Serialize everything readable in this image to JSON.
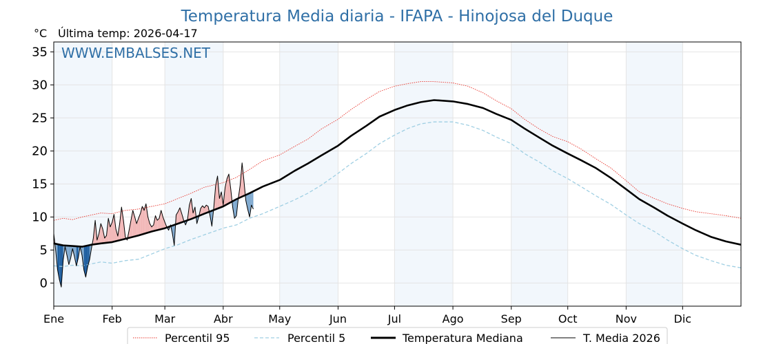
{
  "chart_data": {
    "type": "line",
    "title": "Temperatura Media diaria - IFAPA - Hinojosa del Duque",
    "unit_label": "°C",
    "last_temp_label": "Última temp: 2026-04-17",
    "watermark": "WWW.EMBALSES.NET",
    "ylim": [
      -3.5,
      36.5
    ],
    "yticks": [
      0,
      5,
      10,
      15,
      20,
      25,
      30,
      35
    ],
    "xlim": [
      0,
      365
    ],
    "months": [
      {
        "label": "Ene",
        "day": 0
      },
      {
        "label": "Feb",
        "day": 31
      },
      {
        "label": "Mar",
        "day": 59
      },
      {
        "label": "Abr",
        "day": 90
      },
      {
        "label": "May",
        "day": 120
      },
      {
        "label": "Jun",
        "day": 151
      },
      {
        "label": "Jul",
        "day": 181
      },
      {
        "label": "Ago",
        "day": 212
      },
      {
        "label": "Sep",
        "day": 243
      },
      {
        "label": "Oct",
        "day": 273
      },
      {
        "label": "Nov",
        "day": 304
      },
      {
        "label": "Dic",
        "day": 334
      }
    ],
    "shaded_months": [
      [
        0,
        31
      ],
      [
        59,
        90
      ],
      [
        120,
        151
      ],
      [
        181,
        212
      ],
      [
        243,
        273
      ],
      [
        304,
        334
      ]
    ],
    "grid": true,
    "legend_position": "bottom-center",
    "series": [
      {
        "name": "Percentil 95",
        "color": "#e8332a",
        "style": "dotted",
        "x": [
          0,
          5,
          10,
          15,
          20,
          25,
          31,
          38,
          45,
          52,
          59,
          66,
          73,
          80,
          90,
          97,
          104,
          111,
          120,
          128,
          135,
          142,
          151,
          158,
          166,
          173,
          181,
          188,
          195,
          202,
          212,
          220,
          228,
          235,
          243,
          250,
          258,
          265,
          273,
          280,
          288,
          296,
          304,
          311,
          319,
          326,
          334,
          341,
          349,
          357,
          365
        ],
        "values": [
          9.5,
          9.8,
          9.6,
          10.0,
          10.3,
          10.6,
          10.5,
          11.0,
          11.2,
          11.6,
          12.0,
          12.8,
          13.6,
          14.5,
          15.2,
          16.0,
          17.2,
          18.5,
          19.4,
          20.7,
          21.8,
          23.3,
          24.8,
          26.3,
          27.8,
          29.0,
          29.8,
          30.2,
          30.5,
          30.5,
          30.3,
          29.8,
          28.8,
          27.6,
          26.4,
          24.8,
          23.3,
          22.2,
          21.4,
          20.3,
          18.8,
          17.4,
          15.5,
          13.8,
          12.8,
          12.0,
          11.3,
          10.8,
          10.5,
          10.2,
          9.8
        ]
      },
      {
        "name": "Percentil 5",
        "color": "#9fcfe3",
        "style": "dashed",
        "x": [
          0,
          5,
          10,
          15,
          20,
          25,
          31,
          38,
          45,
          52,
          59,
          66,
          73,
          80,
          90,
          97,
          104,
          111,
          120,
          128,
          135,
          142,
          151,
          158,
          166,
          173,
          181,
          188,
          195,
          202,
          212,
          220,
          228,
          235,
          243,
          250,
          258,
          265,
          273,
          280,
          288,
          296,
          304,
          311,
          319,
          326,
          334,
          341,
          349,
          357,
          365
        ],
        "values": [
          2.6,
          2.5,
          2.7,
          2.6,
          2.9,
          3.2,
          3.0,
          3.4,
          3.6,
          4.4,
          5.2,
          5.8,
          6.6,
          7.3,
          8.3,
          8.8,
          9.8,
          10.5,
          11.6,
          12.6,
          13.6,
          14.8,
          16.6,
          18.1,
          19.6,
          21.1,
          22.4,
          23.4,
          24.1,
          24.4,
          24.4,
          23.9,
          23.1,
          22.1,
          21.1,
          19.6,
          18.3,
          17.0,
          15.8,
          14.6,
          13.2,
          11.9,
          10.3,
          9.0,
          7.8,
          6.5,
          5.2,
          4.2,
          3.4,
          2.7,
          2.3
        ]
      },
      {
        "name": "Temperatura Mediana",
        "color": "#000000",
        "style": "bold",
        "x": [
          0,
          5,
          10,
          15,
          20,
          25,
          31,
          38,
          45,
          52,
          59,
          66,
          73,
          80,
          90,
          97,
          104,
          111,
          120,
          128,
          135,
          142,
          151,
          158,
          166,
          173,
          181,
          188,
          195,
          202,
          212,
          220,
          228,
          235,
          243,
          250,
          258,
          265,
          273,
          280,
          288,
          296,
          304,
          311,
          319,
          326,
          334,
          341,
          349,
          357,
          365
        ],
        "values": [
          6.0,
          5.7,
          5.6,
          5.5,
          5.8,
          6.0,
          6.2,
          6.7,
          7.2,
          7.8,
          8.3,
          9.0,
          9.7,
          10.5,
          11.6,
          12.7,
          13.6,
          14.6,
          15.6,
          17.0,
          18.1,
          19.3,
          20.8,
          22.3,
          23.8,
          25.2,
          26.2,
          26.9,
          27.4,
          27.7,
          27.5,
          27.1,
          26.5,
          25.6,
          24.7,
          23.4,
          22.0,
          20.8,
          19.6,
          18.6,
          17.4,
          15.9,
          14.2,
          12.7,
          11.4,
          10.2,
          9.0,
          8.0,
          7.0,
          6.3,
          5.8
        ]
      },
      {
        "name": "T. Media 2026",
        "color": "#000000",
        "style": "thin",
        "x": [
          0,
          1,
          2,
          3,
          4,
          5,
          6,
          7,
          8,
          9,
          10,
          11,
          12,
          13,
          14,
          15,
          16,
          17,
          18,
          19,
          20,
          21,
          22,
          23,
          24,
          25,
          26,
          27,
          28,
          29,
          30,
          31,
          32,
          33,
          34,
          35,
          36,
          37,
          38,
          39,
          40,
          41,
          42,
          43,
          44,
          45,
          46,
          47,
          48,
          49,
          50,
          51,
          52,
          53,
          54,
          55,
          56,
          57,
          58,
          59,
          60,
          61,
          62,
          63,
          64,
          65,
          66,
          67,
          68,
          69,
          70,
          71,
          72,
          73,
          74,
          75,
          76,
          77,
          78,
          79,
          80,
          81,
          82,
          83,
          84,
          85,
          86,
          87,
          88,
          89,
          90,
          91,
          92,
          93,
          94,
          95,
          96,
          97,
          98,
          99,
          100,
          101,
          102,
          103,
          104,
          105,
          106
        ],
        "values": [
          7.5,
          5.0,
          2.0,
          0.5,
          -0.6,
          3.5,
          5.5,
          4.2,
          2.8,
          3.8,
          5.2,
          4.0,
          2.6,
          3.8,
          5.5,
          4.2,
          2.0,
          0.9,
          2.5,
          3.5,
          5.2,
          6.8,
          9.5,
          6.5,
          7.5,
          9.0,
          8.2,
          6.8,
          7.2,
          9.8,
          8.5,
          9.2,
          10.4,
          8.2,
          7.1,
          9.0,
          11.5,
          9.5,
          7.0,
          6.5,
          8.0,
          9.5,
          11.0,
          10.0,
          9.0,
          9.8,
          10.5,
          11.6,
          11.0,
          12.0,
          10.0,
          9.0,
          8.5,
          8.8,
          10.2,
          9.5,
          9.8,
          11.0,
          10.0,
          9.2,
          8.5,
          8.0,
          8.8,
          7.5,
          5.7,
          10.3,
          10.8,
          11.4,
          10.5,
          9.5,
          8.8,
          9.5,
          11.8,
          12.8,
          10.6,
          11.5,
          9.0,
          10.0,
          11.3,
          11.7,
          11.4,
          11.8,
          11.6,
          10.2,
          8.6,
          11.5,
          14.8,
          16.2,
          12.8,
          13.8,
          11.8,
          14.5,
          15.8,
          16.5,
          14.2,
          11.5,
          9.8,
          10.2,
          12.8,
          14.8,
          18.2,
          15.5,
          12.5,
          11.2,
          10.0,
          11.8,
          11.2
        ]
      }
    ]
  }
}
